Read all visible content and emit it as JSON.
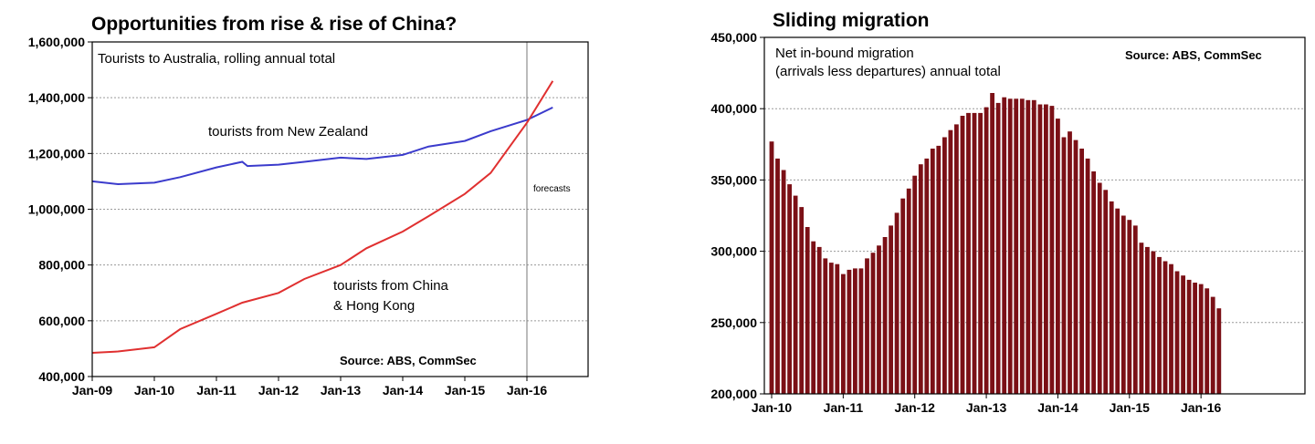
{
  "chart_data": [
    {
      "type": "line",
      "title": "Opportunities from rise & rise of China?",
      "subtitle": "Tourists to Australia, rolling annual total",
      "source": "Source: ABS, CommSec",
      "ylim": [
        400000,
        1600000
      ],
      "yticks": [
        "400,000",
        "600,000",
        "800,000",
        "1,000,000",
        "1,200,000",
        "1,400,000",
        "1,600,000"
      ],
      "xticks": [
        "Jan-09",
        "Jan-10",
        "Jan-11",
        "Jan-12",
        "Jan-13",
        "Jan-14",
        "Jan-15",
        "Jan-16"
      ],
      "forecast_start": "Jan-16",
      "forecast_label": "forecasts",
      "grid": true,
      "series": [
        {
          "name": "tourists from New Zealand",
          "color": "#3b3bcc",
          "x": [
            "2009-01",
            "2009-06",
            "2010-01",
            "2010-06",
            "2011-01",
            "2011-06",
            "2011-07",
            "2012-01",
            "2012-06",
            "2013-01",
            "2013-06",
            "2014-01",
            "2014-06",
            "2015-01",
            "2015-06",
            "2016-01",
            "2016-06"
          ],
          "values": [
            1100000,
            1090000,
            1095000,
            1115000,
            1150000,
            1170000,
            1155000,
            1160000,
            1170000,
            1185000,
            1180000,
            1195000,
            1225000,
            1245000,
            1280000,
            1320000,
            1365000
          ]
        },
        {
          "name": "tourists from China\n& Hong Kong",
          "label_lines": [
            "tourists from China",
            "& Hong Kong"
          ],
          "color": "#e03030",
          "x": [
            "2009-01",
            "2009-06",
            "2010-01",
            "2010-06",
            "2011-01",
            "2011-06",
            "2012-01",
            "2012-06",
            "2013-01",
            "2013-06",
            "2014-01",
            "2014-06",
            "2015-01",
            "2015-06",
            "2016-01",
            "2016-06"
          ],
          "values": [
            485000,
            490000,
            505000,
            570000,
            625000,
            665000,
            700000,
            750000,
            800000,
            860000,
            920000,
            975000,
            1055000,
            1130000,
            1310000,
            1460000
          ]
        }
      ]
    },
    {
      "type": "bar",
      "title": "Sliding migration",
      "subtitle_lines": [
        "Net in-bound migration",
        "(arrivals less departures) annual total"
      ],
      "source": "Source: ABS, CommSec",
      "ylim": [
        200000,
        450000
      ],
      "yticks": [
        "200,000",
        "250,000",
        "300,000",
        "350,000",
        "400,000",
        "450,000"
      ],
      "xticks": [
        "Jan-10",
        "Jan-11",
        "Jan-12",
        "Jan-13",
        "Jan-14",
        "Jan-15",
        "Jan-16"
      ],
      "bar_color": "#7b1016",
      "grid": true,
      "series": [
        {
          "name": "",
          "start": "2010-01",
          "frequency": "monthly",
          "values": [
            377000,
            365000,
            357000,
            347000,
            339000,
            331000,
            317000,
            307000,
            303000,
            295000,
            292000,
            291000,
            284000,
            287000,
            288000,
            288000,
            295000,
            299000,
            304000,
            310000,
            318000,
            327000,
            337000,
            344000,
            353000,
            361000,
            365000,
            372000,
            374000,
            380000,
            385000,
            389000,
            395000,
            397000,
            397000,
            397000,
            401000,
            411000,
            404000,
            408000,
            407000,
            407000,
            407000,
            406000,
            406000,
            403000,
            403000,
            402000,
            393000,
            380000,
            384000,
            378000,
            372000,
            365000,
            356000,
            348000,
            343000,
            335000,
            330000,
            325000,
            322000,
            318000,
            306000,
            303000,
            300000,
            296000,
            293000,
            291000,
            286000,
            283000,
            280000,
            278000,
            277000,
            274000,
            268000,
            260000
          ]
        }
      ]
    }
  ]
}
